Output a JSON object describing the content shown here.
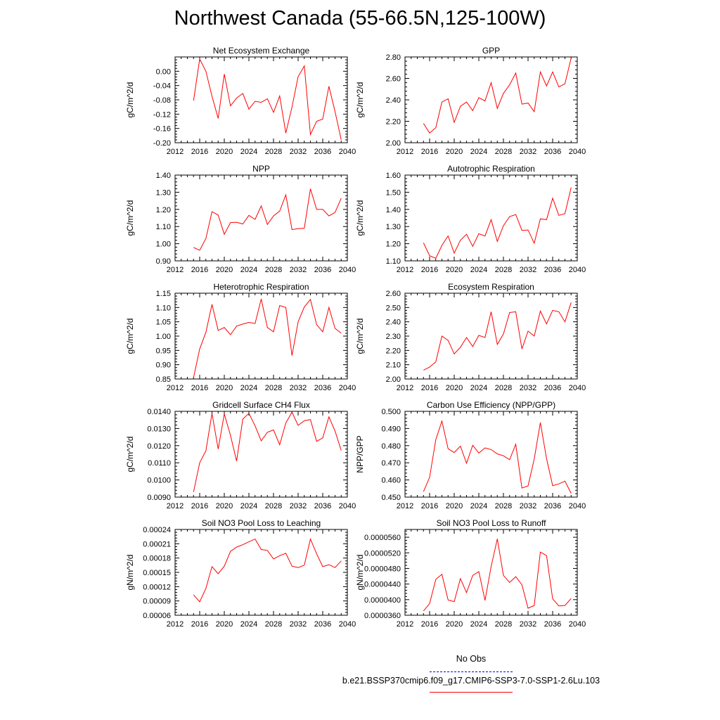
{
  "title": "Northwest Canada (55-66.5N,125-100W)",
  "colors": {
    "series": "#ff0000",
    "obs": "#0000ff",
    "axis": "#000000"
  },
  "legend": {
    "obs_label": "No Obs",
    "model_label": "b.e21.BSSP370cmip6.f09_g17.CMIP6-SSP3-7.0-SSP1-2.6Lu.103"
  },
  "chart_data": [
    {
      "type": "line",
      "title": "Net Ecosystem Exchange",
      "ylabel": "gC/m^2/d",
      "xlim": [
        2012,
        2040
      ],
      "xticks": [
        2012,
        2016,
        2020,
        2024,
        2028,
        2032,
        2036,
        2040
      ],
      "ylim": [
        -0.2,
        0.04
      ],
      "yticks": [
        -0.2,
        -0.16,
        -0.12,
        -0.08,
        -0.04,
        0.0
      ],
      "ytick_labels": [
        "-0.20",
        "-0.16",
        "-0.12",
        "-0.08",
        "-0.04",
        "0.00"
      ],
      "x": [
        2015,
        2016,
        2017,
        2018,
        2019,
        2020,
        2021,
        2022,
        2023,
        2024,
        2025,
        2026,
        2027,
        2028,
        2029,
        2030,
        2031,
        2032,
        2033,
        2034,
        2035,
        2036,
        2037,
        2038,
        2039
      ],
      "y": [
        -0.082,
        0.034,
        0.0,
        -0.07,
        -0.132,
        -0.008,
        -0.097,
        -0.075,
        -0.062,
        -0.106,
        -0.084,
        -0.087,
        -0.077,
        -0.115,
        -0.069,
        -0.173,
        -0.1,
        -0.015,
        0.015,
        -0.177,
        -0.14,
        -0.134,
        -0.042,
        -0.113,
        -0.192
      ]
    },
    {
      "type": "line",
      "title": "GPP",
      "ylabel": "gC/m^2/d",
      "xlim": [
        2012,
        2040
      ],
      "xticks": [
        2012,
        2016,
        2020,
        2024,
        2028,
        2032,
        2036,
        2040
      ],
      "ylim": [
        2.0,
        2.8
      ],
      "yticks": [
        2.0,
        2.2,
        2.4,
        2.6,
        2.8
      ],
      "ytick_labels": [
        "2.00",
        "2.20",
        "2.40",
        "2.60",
        "2.80"
      ],
      "x": [
        2015,
        2016,
        2017,
        2018,
        2019,
        2020,
        2021,
        2022,
        2023,
        2024,
        2025,
        2026,
        2027,
        2028,
        2029,
        2030,
        2031,
        2032,
        2033,
        2034,
        2035,
        2036,
        2037,
        2038,
        2039
      ],
      "y": [
        2.18,
        2.09,
        2.14,
        2.38,
        2.41,
        2.19,
        2.34,
        2.38,
        2.3,
        2.42,
        2.39,
        2.56,
        2.32,
        2.46,
        2.54,
        2.65,
        2.36,
        2.37,
        2.29,
        2.66,
        2.53,
        2.66,
        2.52,
        2.55,
        2.79
      ]
    },
    {
      "type": "line",
      "title": "NPP",
      "ylabel": "gC/m^2/d",
      "xlim": [
        2012,
        2040
      ],
      "xticks": [
        2012,
        2016,
        2020,
        2024,
        2028,
        2032,
        2036,
        2040
      ],
      "ylim": [
        0.9,
        1.4
      ],
      "yticks": [
        0.9,
        1.0,
        1.1,
        1.2,
        1.3,
        1.4
      ],
      "ytick_labels": [
        "0.90",
        "1.00",
        "1.10",
        "1.20",
        "1.30",
        "1.40"
      ],
      "x": [
        2015,
        2016,
        2017,
        2018,
        2019,
        2020,
        2021,
        2022,
        2023,
        2024,
        2025,
        2026,
        2027,
        2028,
        2029,
        2030,
        2031,
        2032,
        2033,
        2034,
        2035,
        2036,
        2037,
        2038,
        2039
      ],
      "y": [
        0.978,
        0.962,
        1.03,
        1.187,
        1.167,
        1.055,
        1.123,
        1.125,
        1.115,
        1.165,
        1.142,
        1.22,
        1.112,
        1.162,
        1.19,
        1.285,
        1.082,
        1.088,
        1.09,
        1.32,
        1.2,
        1.2,
        1.162,
        1.182,
        1.265
      ]
    },
    {
      "type": "line",
      "title": "Autotrophic Respiration",
      "ylabel": "gC/m^2/d",
      "xlim": [
        2012,
        2040
      ],
      "xticks": [
        2012,
        2016,
        2020,
        2024,
        2028,
        2032,
        2036,
        2040
      ],
      "ylim": [
        1.1,
        1.6
      ],
      "yticks": [
        1.1,
        1.2,
        1.3,
        1.4,
        1.5,
        1.6
      ],
      "ytick_labels": [
        "1.10",
        "1.20",
        "1.30",
        "1.40",
        "1.50",
        "1.60"
      ],
      "x": [
        2015,
        2016,
        2017,
        2018,
        2019,
        2020,
        2021,
        2022,
        2023,
        2024,
        2025,
        2026,
        2027,
        2028,
        2029,
        2030,
        2031,
        2032,
        2033,
        2034,
        2035,
        2036,
        2037,
        2038,
        2039
      ],
      "y": [
        1.205,
        1.13,
        1.115,
        1.19,
        1.245,
        1.145,
        1.22,
        1.255,
        1.185,
        1.258,
        1.245,
        1.34,
        1.213,
        1.305,
        1.358,
        1.37,
        1.278,
        1.28,
        1.203,
        1.345,
        1.34,
        1.465,
        1.365,
        1.375,
        1.528
      ]
    },
    {
      "type": "line",
      "title": "Heterotrophic Respiration",
      "ylabel": "gC/m^2/d",
      "xlim": [
        2012,
        2040
      ],
      "xticks": [
        2012,
        2016,
        2020,
        2024,
        2028,
        2032,
        2036,
        2040
      ],
      "ylim": [
        0.85,
        1.15
      ],
      "yticks": [
        0.85,
        0.9,
        0.95,
        1.0,
        1.05,
        1.1,
        1.15
      ],
      "ytick_labels": [
        "0.85",
        "0.90",
        "0.95",
        "1.00",
        "1.05",
        "1.10",
        "1.15"
      ],
      "x": [
        2015,
        2016,
        2017,
        2018,
        2019,
        2020,
        2021,
        2022,
        2023,
        2024,
        2025,
        2026,
        2027,
        2028,
        2029,
        2030,
        2031,
        2032,
        2033,
        2034,
        2035,
        2036,
        2037,
        2038,
        2039
      ],
      "y": [
        0.855,
        0.955,
        1.013,
        1.111,
        1.02,
        1.03,
        1.005,
        1.035,
        1.042,
        1.048,
        1.044,
        1.13,
        1.03,
        1.015,
        1.107,
        1.1,
        0.932,
        1.05,
        1.102,
        1.128,
        1.04,
        1.015,
        1.1,
        1.027,
        1.01
      ]
    },
    {
      "type": "line",
      "title": "Ecosystem Respiration",
      "ylabel": "gC/m^2/d",
      "xlim": [
        2012,
        2040
      ],
      "xticks": [
        2012,
        2016,
        2020,
        2024,
        2028,
        2032,
        2036,
        2040
      ],
      "ylim": [
        2.0,
        2.6
      ],
      "yticks": [
        2.0,
        2.1,
        2.2,
        2.3,
        2.4,
        2.5,
        2.6
      ],
      "ytick_labels": [
        "2.00",
        "2.10",
        "2.20",
        "2.30",
        "2.40",
        "2.50",
        "2.60"
      ],
      "x": [
        2015,
        2016,
        2017,
        2018,
        2019,
        2020,
        2021,
        2022,
        2023,
        2024,
        2025,
        2026,
        2027,
        2028,
        2029,
        2030,
        2031,
        2032,
        2033,
        2034,
        2035,
        2036,
        2037,
        2038,
        2039
      ],
      "y": [
        2.062,
        2.083,
        2.12,
        2.3,
        2.27,
        2.175,
        2.222,
        2.29,
        2.227,
        2.305,
        2.29,
        2.47,
        2.242,
        2.315,
        2.465,
        2.47,
        2.21,
        2.335,
        2.3,
        2.475,
        2.385,
        2.48,
        2.47,
        2.4,
        2.535
      ]
    },
    {
      "type": "line",
      "title": "Gridcell Surface CH4 Flux",
      "ylabel": "gC/m^2/d",
      "xlim": [
        2012,
        2040
      ],
      "xticks": [
        2012,
        2016,
        2020,
        2024,
        2028,
        2032,
        2036,
        2040
      ],
      "ylim": [
        0.009,
        0.014
      ],
      "yticks": [
        0.009,
        0.01,
        0.011,
        0.012,
        0.013,
        0.014
      ],
      "ytick_labels": [
        "0.0090",
        "0.0100",
        "0.0110",
        "0.0120",
        "0.0130",
        "0.0140"
      ],
      "x": [
        2015,
        2016,
        2017,
        2018,
        2019,
        2020,
        2021,
        2022,
        2023,
        2024,
        2025,
        2026,
        2027,
        2028,
        2029,
        2030,
        2031,
        2032,
        2033,
        2034,
        2035,
        2036,
        2037,
        2038,
        2039
      ],
      "y": [
        0.0093,
        0.011,
        0.0117,
        0.01388,
        0.0118,
        0.01385,
        0.0126,
        0.0111,
        0.01355,
        0.01388,
        0.01315,
        0.01228,
        0.01278,
        0.01292,
        0.01205,
        0.01332,
        0.01395,
        0.01318,
        0.01345,
        0.01352,
        0.01225,
        0.01245,
        0.01368,
        0.01285,
        0.01172
      ]
    },
    {
      "type": "line",
      "title": "Carbon Use Efficiency (NPP/GPP)",
      "ylabel": "NPP/GPP",
      "xlim": [
        2012,
        2040
      ],
      "xticks": [
        2012,
        2016,
        2020,
        2024,
        2028,
        2032,
        2036,
        2040
      ],
      "ylim": [
        0.45,
        0.5
      ],
      "yticks": [
        0.45,
        0.46,
        0.47,
        0.48,
        0.49,
        0.5
      ],
      "ytick_labels": [
        "0.450",
        "0.460",
        "0.470",
        "0.480",
        "0.490",
        "0.500"
      ],
      "x": [
        2015,
        2016,
        2017,
        2018,
        2019,
        2020,
        2021,
        2022,
        2023,
        2024,
        2025,
        2026,
        2027,
        2028,
        2029,
        2030,
        2031,
        2032,
        2033,
        2034,
        2035,
        2036,
        2037,
        2038,
        2039
      ],
      "y": [
        0.4532,
        0.4615,
        0.4835,
        0.4943,
        0.4782,
        0.476,
        0.4797,
        0.4697,
        0.4802,
        0.4757,
        0.4787,
        0.4777,
        0.4752,
        0.4741,
        0.4718,
        0.4808,
        0.4553,
        0.4565,
        0.4722,
        0.4935,
        0.4725,
        0.4567,
        0.4577,
        0.4593,
        0.4522
      ]
    },
    {
      "type": "line",
      "title": "Soil NO3 Pool Loss to Leaching",
      "ylabel": "gN/m^2/d",
      "xlim": [
        2012,
        2040
      ],
      "xticks": [
        2012,
        2016,
        2020,
        2024,
        2028,
        2032,
        2036,
        2040
      ],
      "ylim": [
        6e-05,
        0.00024
      ],
      "yticks": [
        6e-05,
        9e-05,
        0.00012,
        0.00015,
        0.00018,
        0.00021,
        0.00024
      ],
      "ytick_labels": [
        "0.00006",
        "0.00009",
        "0.00012",
        "0.00015",
        "0.00018",
        "0.00021",
        "0.00024"
      ],
      "x": [
        2015,
        2016,
        2017,
        2018,
        2019,
        2020,
        2021,
        2022,
        2023,
        2024,
        2025,
        2026,
        2027,
        2028,
        2029,
        2030,
        2031,
        2032,
        2033,
        2034,
        2035,
        2036,
        2037,
        2038,
        2039
      ],
      "y": [
        0.000103,
        8.8e-05,
        0.000116,
        0.000162,
        0.000147,
        0.000163,
        0.000194,
        0.000203,
        0.000208,
        0.000214,
        0.00022,
        0.000198,
        0.000196,
        0.000178,
        0.000185,
        0.00019,
        0.000163,
        0.00016,
        0.000165,
        0.00022,
        0.000189,
        0.000162,
        0.000166,
        0.00016,
        0.000174
      ]
    },
    {
      "type": "line",
      "title": "Soil NO3 Pool Loss to Runoff",
      "ylabel": "gN/m^2/d",
      "xlim": [
        2012,
        2040
      ],
      "xticks": [
        2012,
        2016,
        2020,
        2024,
        2028,
        2032,
        2036,
        2040
      ],
      "ylim": [
        3.6e-05,
        5.8e-05
      ],
      "yticks": [
        3.6e-05,
        4e-05,
        4.4e-05,
        4.8e-05,
        5.2e-05,
        5.6e-05
      ],
      "ytick_labels": [
        "0.0000360",
        "0.0000400",
        "0.0000440",
        "0.0000480",
        "0.0000520",
        "0.0000560"
      ],
      "x": [
        2015,
        2016,
        2017,
        2018,
        2019,
        2020,
        2021,
        2022,
        2023,
        2024,
        2025,
        2026,
        2027,
        2028,
        2029,
        2030,
        2031,
        2032,
        2033,
        2034,
        2035,
        2036,
        2037,
        2038,
        2039
      ],
      "y": [
        3.71e-05,
        3.9e-05,
        4.52e-05,
        4.65e-05,
        3.99e-05,
        3.95e-05,
        4.54e-05,
        4.18e-05,
        4.62e-05,
        4.72e-05,
        3.98e-05,
        4.85e-05,
        5.56e-05,
        4.62e-05,
        4.44e-05,
        4.59e-05,
        4.38e-05,
        3.78e-05,
        3.85e-05,
        5.22e-05,
        5.13e-05,
        4.02e-05,
        3.84e-05,
        3.85e-05,
        4.03e-05
      ]
    }
  ]
}
